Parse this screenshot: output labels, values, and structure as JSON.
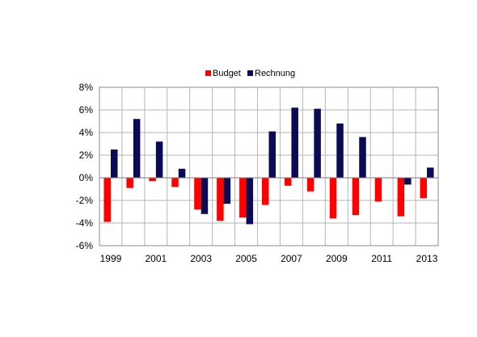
{
  "chart_data": {
    "type": "bar",
    "categories": [
      "1999",
      "2000",
      "2001",
      "2002",
      "2003",
      "2004",
      "2005",
      "2006",
      "2007",
      "2008",
      "2009",
      "2010",
      "2011",
      "2012",
      "2013"
    ],
    "x_tick_labels": [
      "1999",
      "2001",
      "2003",
      "2005",
      "2007",
      "2009",
      "2011",
      "2013"
    ],
    "series": [
      {
        "name": "Budget",
        "color": "#ff0000",
        "values": [
          -3.9,
          -0.9,
          -0.3,
          -0.8,
          -2.8,
          -3.8,
          -3.5,
          -2.4,
          -0.7,
          -1.2,
          -3.6,
          -3.3,
          -2.1,
          -3.4,
          -1.8
        ]
      },
      {
        "name": "Rechnung",
        "color": "#0a0a55",
        "values": [
          2.5,
          5.2,
          3.2,
          0.8,
          -3.2,
          -2.3,
          -4.1,
          4.1,
          6.2,
          6.1,
          4.8,
          3.6,
          0.0,
          -0.6,
          0.9
        ]
      }
    ],
    "y_ticks": [
      -6,
      -4,
      -2,
      0,
      2,
      4,
      6,
      8
    ],
    "y_tick_labels": [
      "-6%",
      "-4%",
      "-2%",
      "0%",
      "2%",
      "4%",
      "6%",
      "8%"
    ],
    "ylim": [
      -6,
      8
    ],
    "grid": true,
    "legend": "top",
    "title": "",
    "xlabel": "",
    "ylabel": ""
  }
}
